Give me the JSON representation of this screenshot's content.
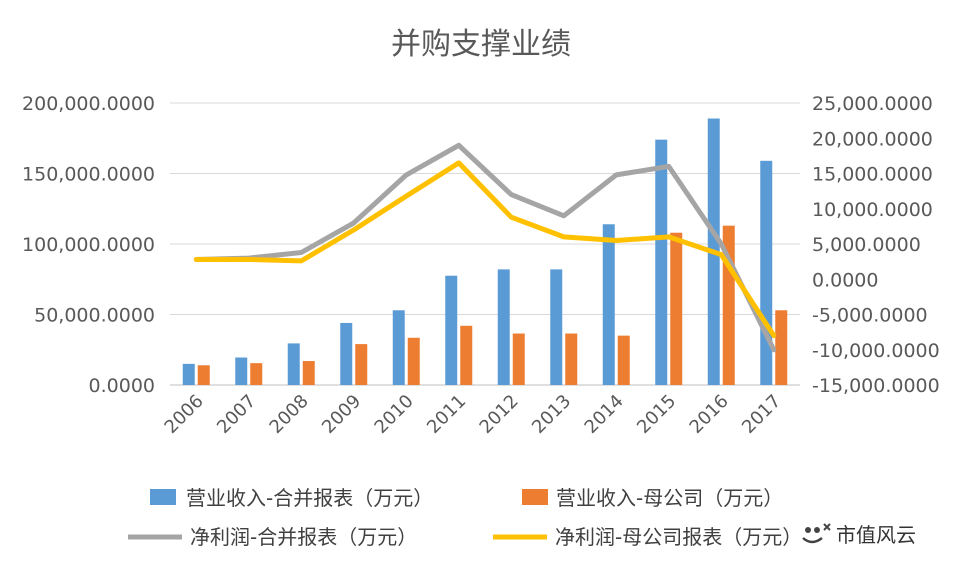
{
  "chart_data": {
    "type": "bar",
    "title": "并购支撑业绩",
    "categories": [
      "2006",
      "2007",
      "2008",
      "2009",
      "2010",
      "2011",
      "2012",
      "2013",
      "2014",
      "2015",
      "2016",
      "2017"
    ],
    "series": [
      {
        "name": "营业收入-合并报表（万元）",
        "type": "bar",
        "axis": "left",
        "color": "#5B9BD5",
        "values": [
          15000,
          19500,
          29500,
          44000,
          53000,
          77500,
          82000,
          82000,
          114000,
          174000,
          189000,
          159000
        ]
      },
      {
        "name": "营业收入-母公司（万元）",
        "type": "bar",
        "axis": "left",
        "color": "#ED7D31",
        "values": [
          14000,
          15500,
          17000,
          29000,
          33500,
          42000,
          36500,
          36500,
          35000,
          108000,
          113000,
          53000
        ]
      },
      {
        "name": "净利润-合并报表（万元）",
        "type": "line",
        "axis": "right",
        "color": "#A5A5A5",
        "values": [
          2800,
          3000,
          3800,
          8000,
          14800,
          19000,
          12000,
          9000,
          14800,
          16000,
          5000,
          -10000
        ]
      },
      {
        "name": "净利润-母公司报表（万元）",
        "type": "line",
        "axis": "right",
        "color": "#FFC000",
        "values": [
          2800,
          2800,
          2600,
          7000,
          11800,
          16500,
          8800,
          6000,
          5500,
          6000,
          3500,
          -8000
        ]
      }
    ],
    "ylim_left": [
      0,
      200000
    ],
    "ylim_right": [
      -15000,
      25000
    ],
    "yticks_left": [
      "200,000.0000",
      "150,000.0000",
      "100,000.0000",
      "50,000.0000",
      "0.0000"
    ],
    "yticks_right": [
      "25,000.0000",
      "20,000.0000",
      "15,000.0000",
      "10,000.0000",
      "5,000.0000",
      "0.0000",
      "-5,000.0000",
      "-10,000.0000",
      "-15,000.0000"
    ],
    "grid": true,
    "legend_position": "bottom"
  },
  "watermark": {
    "text": "市值风云"
  }
}
